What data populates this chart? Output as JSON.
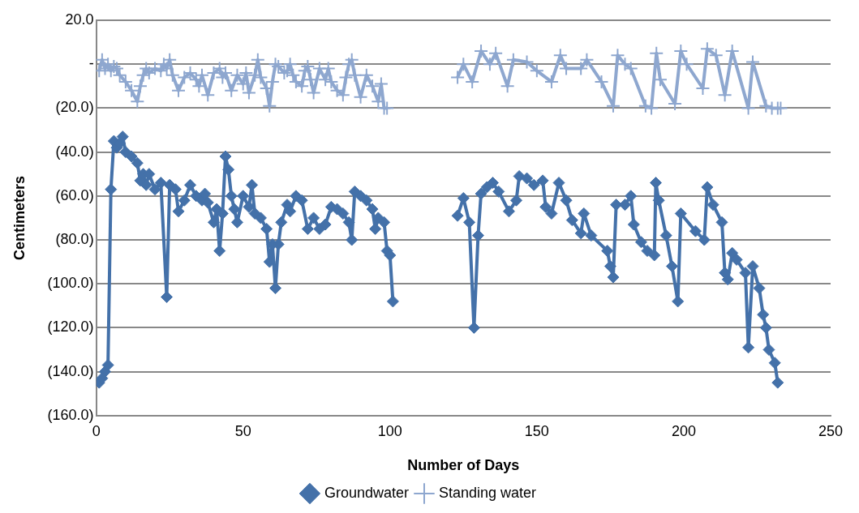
{
  "chart_data": {
    "type": "line",
    "xlabel": "Number of Days",
    "ylabel": "Centimeters",
    "xlim": [
      0,
      250
    ],
    "xticks": [
      0,
      50,
      100,
      150,
      200,
      250
    ],
    "ylim": [
      -160,
      20
    ],
    "yticks": [
      {
        "value": 20,
        "label": "20.0"
      },
      {
        "value": 0,
        "label": "-"
      },
      {
        "value": -20,
        "label": "(20.0)"
      },
      {
        "value": -40,
        "label": "(40.0)"
      },
      {
        "value": -60,
        "label": "(60.0)"
      },
      {
        "value": -80,
        "label": "(80.0)"
      },
      {
        "value": -100,
        "label": "(100.0)"
      },
      {
        "value": -120,
        "label": "(120.0)"
      },
      {
        "value": -140,
        "label": "(140.0)"
      },
      {
        "value": -160,
        "label": "(160.0)"
      }
    ],
    "grid": "y",
    "legend": "bottom",
    "series": [
      {
        "name": "Groundwater",
        "color": "#4471a9",
        "marker": "diamond",
        "x": [
          1,
          2,
          3,
          4,
          5,
          6,
          7,
          8,
          9,
          10,
          12,
          14,
          15,
          16,
          17,
          18,
          20,
          22,
          24,
          25,
          27,
          28,
          30,
          32,
          34,
          36,
          37,
          38,
          40,
          41,
          42,
          43,
          44,
          45,
          46,
          47,
          48,
          50,
          52,
          53,
          54,
          56,
          58,
          59,
          60,
          61,
          62,
          63,
          65,
          66,
          68,
          70,
          72,
          74,
          76,
          78,
          80,
          82,
          84,
          86,
          87,
          88,
          90,
          92,
          94,
          95,
          96,
          98,
          99,
          100,
          101,
          112,
          123,
          125,
          127,
          128.6,
          130,
          131,
          133,
          135,
          137,
          140.5,
          143,
          144,
          146.6,
          149,
          152,
          153,
          155,
          157.5,
          160,
          162,
          165,
          166,
          168.5,
          174,
          175,
          176,
          177,
          180,
          182,
          183,
          185.5,
          187.6,
          190,
          190.5,
          191.5,
          194,
          196,
          198,
          199,
          204,
          207,
          208,
          210,
          213,
          214,
          215,
          216.5,
          218,
          221,
          222,
          223.5,
          225.7,
          227,
          228,
          229,
          231,
          232
        ],
        "values": [
          -145,
          -143,
          -140,
          -137,
          -57,
          -35,
          -38,
          -36,
          -33,
          -40,
          -42,
          -45,
          -53,
          -50,
          -55,
          -50,
          -57,
          -54,
          -106,
          -55,
          -57,
          -67,
          -62,
          -55,
          -60,
          -62,
          -59,
          -63,
          -72,
          -66,
          -85,
          -68,
          -42,
          -48,
          -60,
          -66,
          -72,
          -60,
          -65,
          -55,
          -68,
          -70,
          -75,
          -90,
          -82,
          -102,
          -82,
          -72,
          -64,
          -67,
          -60,
          -62,
          -75,
          -70,
          -75,
          -73,
          -65,
          -66,
          -68,
          -72,
          -80,
          -58,
          -60,
          -62,
          -66,
          -75,
          -70,
          -72,
          -85,
          -87,
          -108,
          null,
          -69,
          -61,
          -72,
          -120,
          -78,
          -59,
          -56,
          -54,
          -58,
          -67,
          -62,
          -51,
          -52,
          -55,
          -53,
          -65,
          -68,
          -54,
          -62,
          -71,
          -77,
          -68,
          -78,
          -85,
          -92,
          -97,
          -64,
          -64,
          -60,
          -73,
          -81,
          -85,
          -87,
          -54,
          -62,
          -78,
          -92,
          -108,
          -68,
          -76,
          -80,
          -56,
          -64,
          -72,
          -95,
          -98,
          -86,
          -89,
          -95,
          -129,
          -92,
          -102,
          -114,
          -120,
          -130,
          -136,
          -145
        ]
      },
      {
        "name": "Standing water",
        "color": "#8ea7cf",
        "marker": "cross",
        "x": [
          1,
          2,
          3,
          4,
          5,
          6,
          7,
          8,
          10,
          12,
          14,
          15,
          16,
          17,
          18,
          20,
          22,
          23,
          24,
          25,
          26,
          28,
          30,
          32,
          34,
          35,
          36,
          38,
          40,
          42,
          43,
          44,
          46,
          48,
          50,
          51,
          52,
          54,
          55,
          56,
          58,
          59,
          60,
          61,
          62,
          64,
          65,
          66,
          67,
          68,
          70,
          71,
          72,
          73,
          74,
          76,
          78,
          79,
          80,
          82,
          84,
          85,
          86,
          87,
          88,
          90,
          92,
          94,
          96,
          97,
          98,
          99,
          112,
          123,
          125,
          128,
          131,
          134,
          136,
          140,
          142,
          146.6,
          150,
          155,
          158,
          160,
          165,
          167,
          172,
          176,
          177.5,
          180,
          182,
          187,
          189,
          190.7,
          192,
          197,
          199,
          201,
          206.5,
          208,
          211,
          214,
          216.5,
          222,
          223.5,
          228,
          230,
          232,
          233
        ],
        "values": [
          -3,
          2,
          -2,
          0,
          -3,
          -1,
          -2,
          -5,
          -8,
          -12,
          -17,
          -10,
          -5,
          -2,
          -4,
          -2,
          -3,
          0,
          -2,
          2,
          -5,
          -12,
          -6,
          -4,
          -7,
          -10,
          -5,
          -14,
          -4,
          -2,
          -6,
          -4,
          -12,
          -5,
          -9,
          -4,
          -13,
          -5,
          2,
          -6,
          -11,
          -19,
          -8,
          0,
          -1,
          -4,
          -3,
          0,
          -5,
          -8,
          -10,
          -3,
          -1,
          -7,
          -13,
          -2,
          -7,
          -2,
          -8,
          -12,
          -14,
          -6,
          0,
          2,
          -5,
          -15,
          -5,
          -10,
          -17,
          -9,
          -20,
          -20,
          null,
          -6,
          0,
          -8,
          6,
          0,
          5,
          -10,
          2,
          1,
          -3,
          -8,
          4,
          -2,
          -2,
          2,
          -8,
          -19,
          4,
          0,
          -2,
          -19,
          -20,
          5,
          -7,
          -18,
          6,
          0,
          -11,
          7,
          4,
          -14,
          6,
          -20,
          1,
          -19,
          -20,
          -20,
          -20
        ]
      }
    ]
  }
}
